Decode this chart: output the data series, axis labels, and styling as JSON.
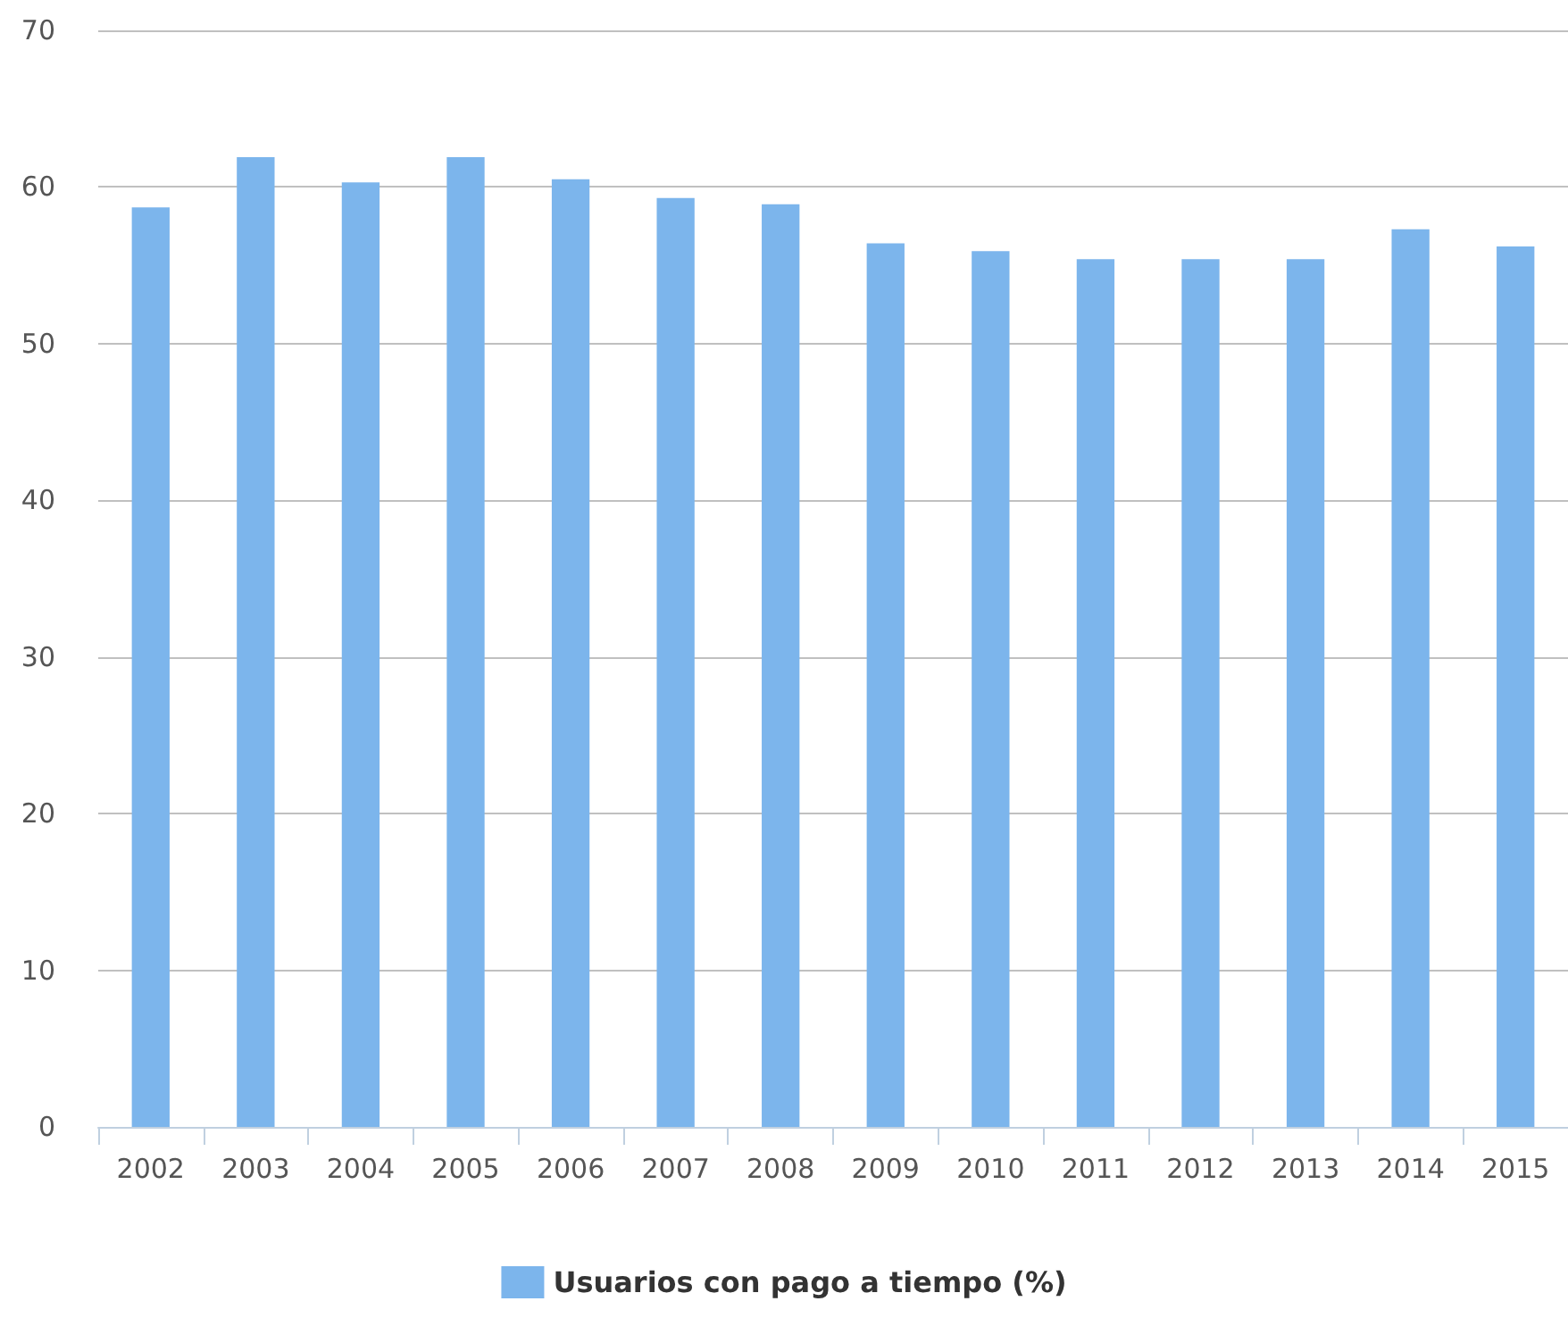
{
  "chart_data": {
    "type": "bar",
    "categories": [
      "2002",
      "2003",
      "2004",
      "2005",
      "2006",
      "2007",
      "2008",
      "2009",
      "2010",
      "2011",
      "2012",
      "2013",
      "2014",
      "2015"
    ],
    "series": [
      {
        "name": "Usuarios con pago a tiempo (%)",
        "color": "#7cb5ec",
        "values": [
          58.7,
          61.9,
          60.3,
          61.9,
          60.5,
          59.3,
          58.9,
          56.4,
          55.9,
          55.4,
          55.4,
          55.4,
          57.3,
          56.2
        ]
      }
    ],
    "ylim": [
      0,
      70
    ],
    "yticks": [
      0,
      10,
      20,
      30,
      40,
      50,
      60,
      70
    ],
    "grid": "y",
    "legend": "bottom"
  }
}
